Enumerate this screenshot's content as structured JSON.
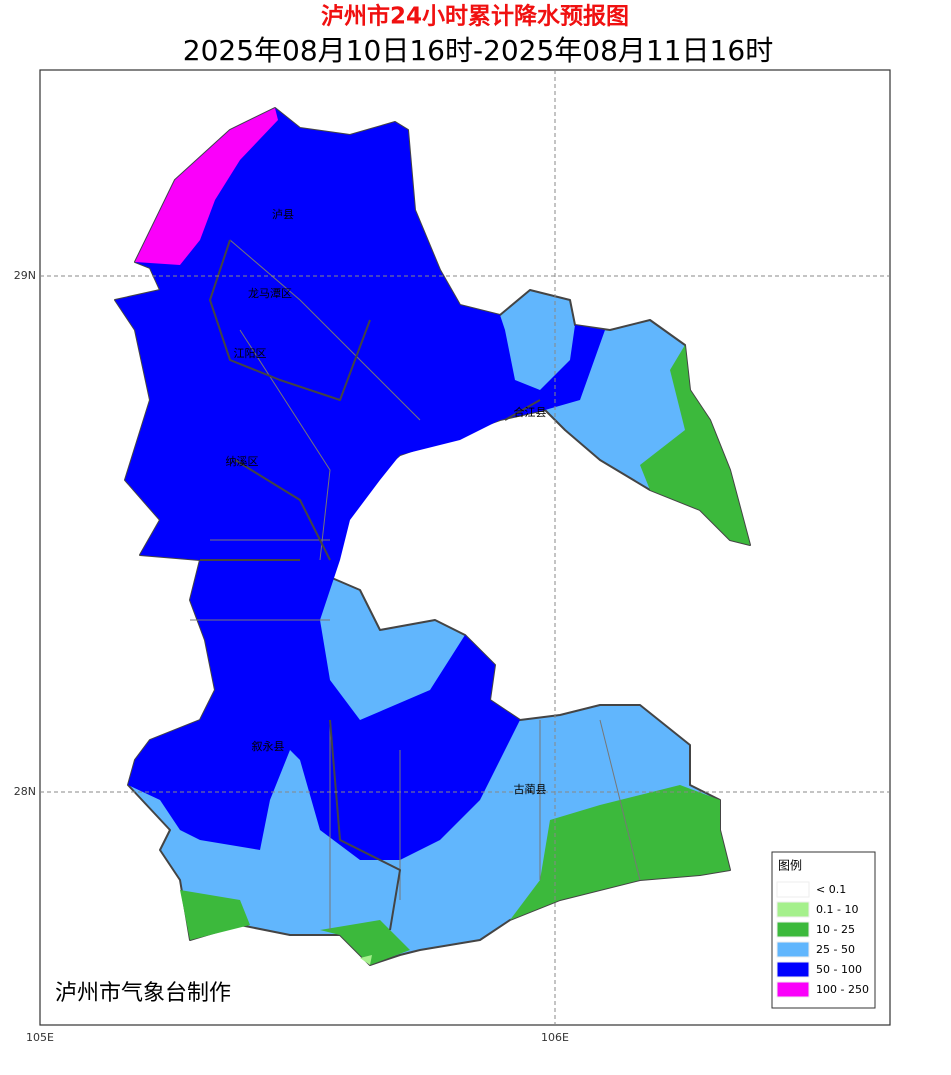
{
  "header": {
    "title": "泸州市24小时累计降水预报图",
    "subtitle": "2025年08月10日16时-2025年08月11日16时"
  },
  "axes": {
    "x_labels": [
      "105E",
      "106E"
    ],
    "y_labels": [
      "29N",
      "28N"
    ]
  },
  "places": [
    "泸县",
    "龙马潭区",
    "江阳区",
    "纳溪区",
    "合江县",
    "叙永县",
    "古蔺县"
  ],
  "legend": {
    "title": "图例",
    "entries": [
      {
        "label": "< 0.1",
        "color": "#ffffff"
      },
      {
        "label": "0.1 - 10",
        "color": "#a5f08c"
      },
      {
        "label": "10 - 25",
        "color": "#3cb93c"
      },
      {
        "label": "25 - 50",
        "color": "#61b6fd"
      },
      {
        "label": "50 - 100",
        "color": "#0000fe"
      },
      {
        "label": "100 - 250",
        "color": "#fa00fa"
      }
    ]
  },
  "credit": "泸州市气象台制作"
}
